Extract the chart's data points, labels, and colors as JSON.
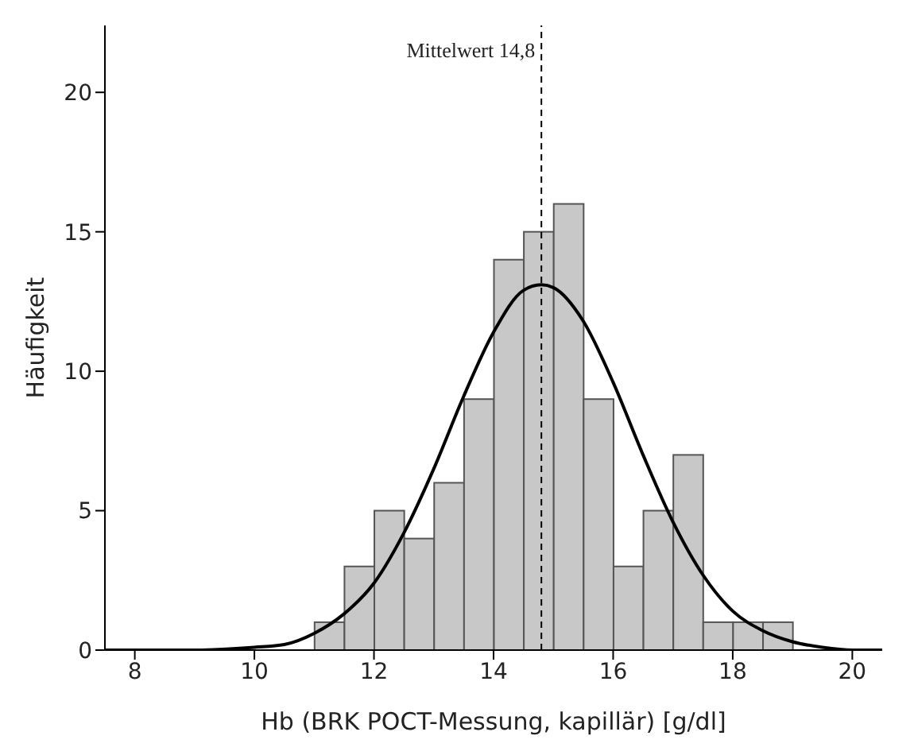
{
  "chart_data": {
    "type": "histogram",
    "xlabel": "Hb (BRK POCT-Messung, kapillär) [g/dl]",
    "ylabel": "Häufigkeit",
    "bins": [
      11,
      11.5,
      12,
      12.5,
      13,
      13.5,
      14,
      14.5,
      15,
      15.5,
      16,
      16.5,
      17,
      17.5,
      18,
      18.5,
      19
    ],
    "series": [
      {
        "color": "#c8c8c8",
        "values": [
          1,
          3,
          5,
          4,
          6,
          9,
          14,
          15,
          16,
          9,
          3,
          5,
          7,
          1,
          1,
          1
        ]
      },
      {
        "type": "line",
        "color": "#000000",
        "x": [
          7.5,
          8,
          9,
          10,
          10.5,
          11,
          11.5,
          12,
          12.5,
          13,
          13.5,
          14,
          14.5,
          14.8,
          15,
          15.5,
          16,
          16.5,
          17,
          17.5,
          18,
          18.5,
          19,
          19.5,
          20,
          20.5
        ],
        "values": [
          0,
          0,
          0,
          0.1,
          0.2,
          0.6,
          1.3,
          2.4,
          4.2,
          6.5,
          9.1,
          11.4,
          12.9,
          13.1,
          13,
          11.8,
          9.6,
          7,
          4.6,
          2.7,
          1.4,
          0.7,
          0.3,
          0.1,
          0,
          0
        ]
      }
    ],
    "xlim": [
      7.5,
      20.5
    ],
    "xticks": [
      8,
      10,
      12,
      14,
      16,
      18,
      20
    ],
    "ylim": [
      0,
      22.4
    ],
    "yticks": [
      0,
      5,
      10,
      15,
      20
    ],
    "ref_lines": [
      {
        "axis": "x",
        "value": 14.8,
        "label": "Mittelwert 14,8",
        "line_style": "dashed",
        "color": "#000000"
      }
    ],
    "grid": false
  }
}
